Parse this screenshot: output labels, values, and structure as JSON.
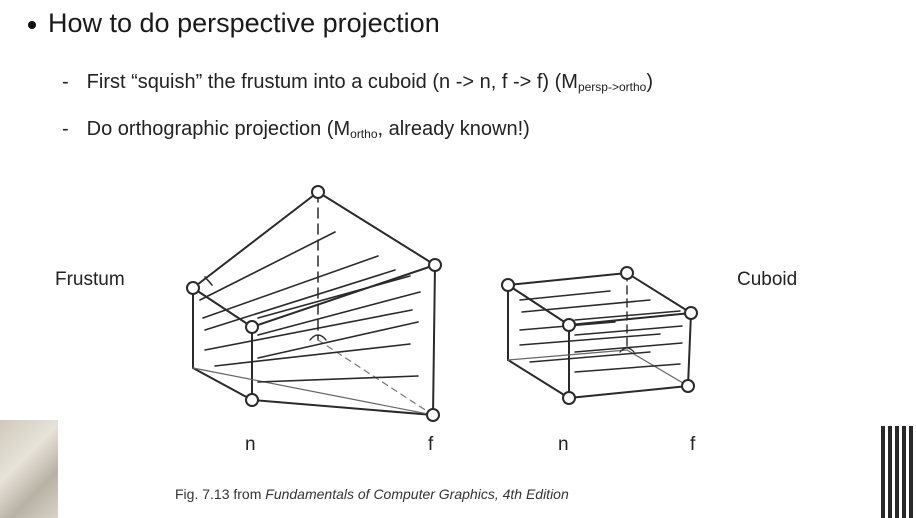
{
  "bullet": "How to do perspective projection",
  "sub1": {
    "dash": "-",
    "text": "First “squish” the frustum into a cuboid (n -> n, f -> f) (M",
    "subscript": "persp->ortho",
    "close": ")"
  },
  "sub2": {
    "dash": "-",
    "text": "Do orthographic projection (M",
    "subscript": "ortho",
    "rest": ", already known!)"
  },
  "figure": {
    "frustum_label": "Frustum",
    "cuboid_label": "Cuboid",
    "n_label_1": "n",
    "f_label_1": "f",
    "n_label_2": "n",
    "f_label_2": "f"
  },
  "caption": {
    "prefix": "Fig. 7.13 from ",
    "title": "Fundamentals of Computer Graphics, 4th Edition"
  }
}
